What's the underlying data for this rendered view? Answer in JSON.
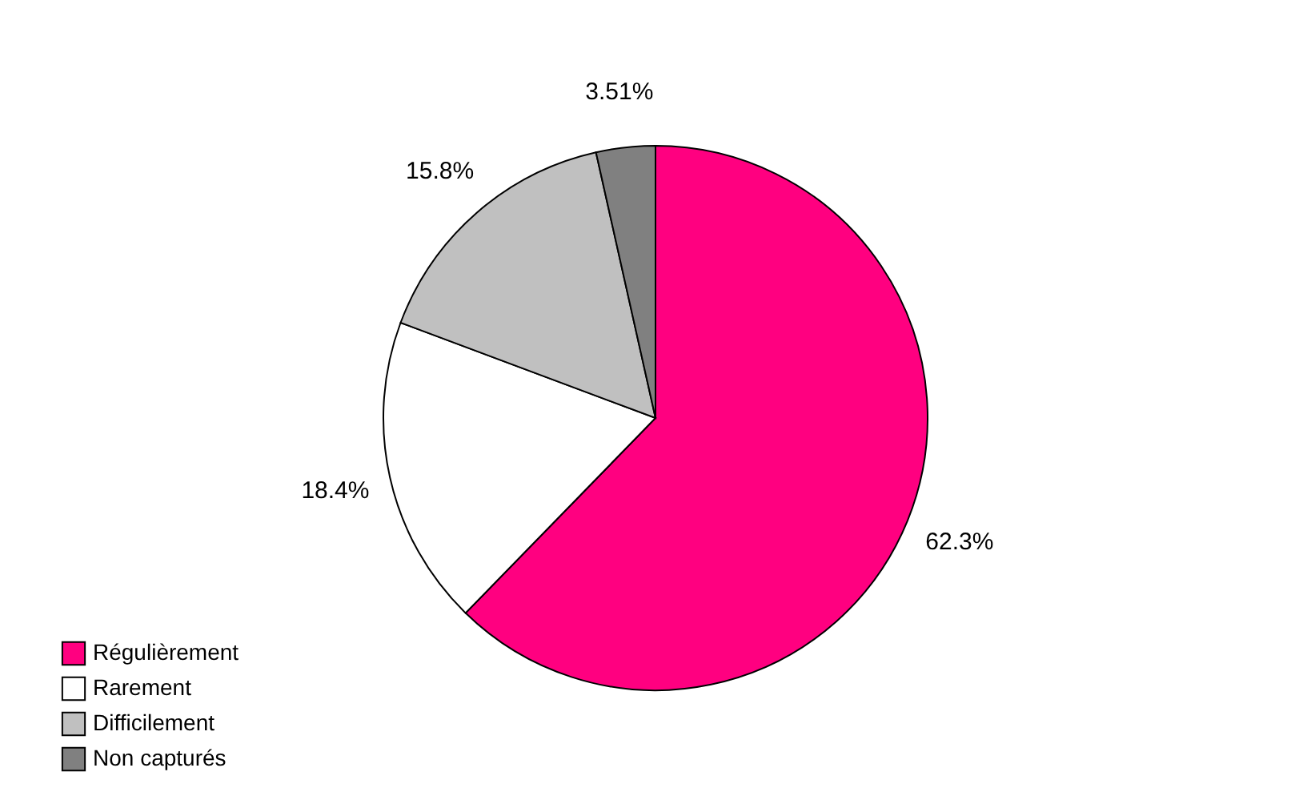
{
  "chart_data": {
    "type": "pie",
    "categories": [
      "Régulièrement",
      "Rarement",
      "Difficilement",
      "Non capturés"
    ],
    "values": [
      62.3,
      18.4,
      15.8,
      3.51
    ],
    "colors": [
      "#ff0080",
      "#ffffff",
      "#c0c0c0",
      "#808080"
    ],
    "value_labels": [
      "62.3%",
      "18.4%",
      "15.8%",
      "3.51%"
    ],
    "legend": "bottom left"
  }
}
